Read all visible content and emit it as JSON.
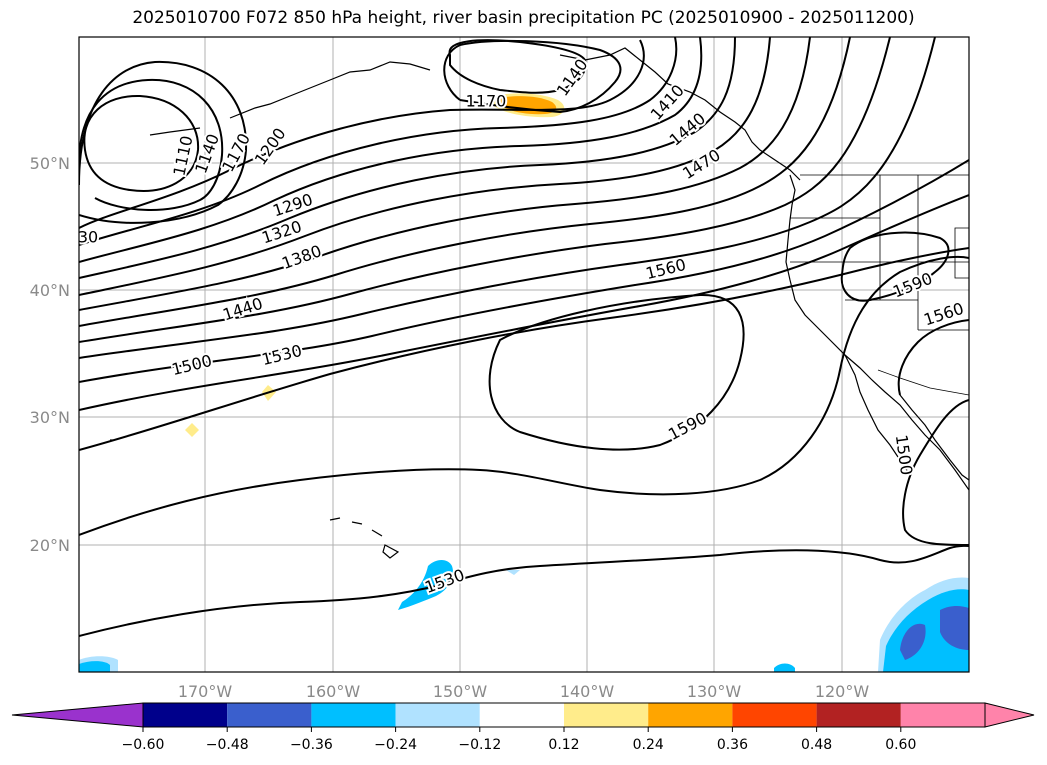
{
  "title": "2025010700 F072 850 hPa height, river basin precipitation PC (2025010900 - 2025011200)",
  "map": {
    "lon_ticks": [
      "170°W",
      "160°W",
      "150°W",
      "140°W",
      "130°W",
      "120°W"
    ],
    "lat_ticks": [
      "50°N",
      "40°N",
      "30°N",
      "20°N"
    ],
    "contour_labels": [
      {
        "text": "1170",
        "rot": 0
      },
      {
        "text": "1140",
        "rot": -55
      },
      {
        "text": "1110",
        "rot": -78
      },
      {
        "text": "1140",
        "rot": -70
      },
      {
        "text": "1170",
        "rot": -62
      },
      {
        "text": "1200",
        "rot": -55
      },
      {
        "text": "1290",
        "rot": -18
      },
      {
        "text": "1320",
        "rot": -18
      },
      {
        "text": "1380",
        "rot": -20
      },
      {
        "text": "1440",
        "rot": -18
      },
      {
        "text": "1500",
        "rot": -14
      },
      {
        "text": "1530",
        "rot": -14
      },
      {
        "text": "1560",
        "rot": -14
      },
      {
        "text": "1590",
        "rot": -28
      },
      {
        "text": "1590",
        "rot": -22
      },
      {
        "text": "1560",
        "rot": -18
      },
      {
        "text": "1530",
        "rot": -20
      },
      {
        "text": "1500",
        "rot": 82
      },
      {
        "text": "1470",
        "rot": -32
      },
      {
        "text": "1410",
        "rot": -48
      },
      {
        "text": "1440",
        "rot": -40
      },
      {
        "text": "30",
        "rot": 0
      }
    ],
    "colors": {
      "contour": "#000000",
      "grid": "#b0b0b0",
      "coast": "#000000"
    }
  },
  "colorbar": {
    "ticks": [
      "−0.60",
      "−0.48",
      "−0.36",
      "−0.24",
      "−0.12",
      "0.12",
      "0.24",
      "0.36",
      "0.48",
      "0.60"
    ],
    "colors": [
      "#9a32cd",
      "#00008b",
      "#3a5fcd",
      "#00bfff",
      "#b0e2ff",
      "#ffffff",
      "#ffec8b",
      "#ffa500",
      "#ff4500",
      "#b22222",
      "#ff83aa",
      "#ff83aa"
    ]
  }
}
